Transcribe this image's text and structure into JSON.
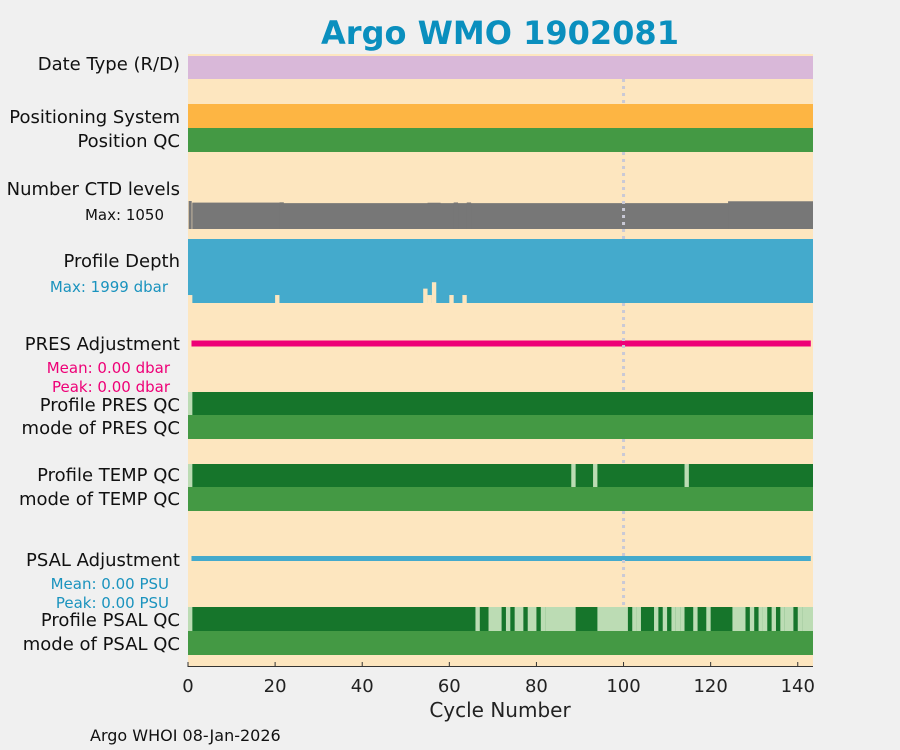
{
  "chart_data": {
    "type": "table",
    "title": "Argo WMO 1902081",
    "xlabel": "Cycle Number",
    "xlim": [
      0,
      143.5
    ],
    "xticks": [
      0,
      20,
      40,
      60,
      80,
      100,
      120,
      140
    ],
    "xtick_labels": [
      "0",
      "20",
      "40",
      "60",
      "80",
      "100",
      "120",
      "140"
    ],
    "reference_line_x": 100,
    "footer": "Argo WHOI 08-Jan-2026",
    "colors": {
      "background": "#fde6bf",
      "figure": "#f0f0f0",
      "title": "#0a8fbe",
      "date_type": "#d9b8d9",
      "positioning": "#fdb543",
      "qc_good": "#449944",
      "qc_dark": "#16752b",
      "qc_light": "#bcdcb4",
      "ctd": "#777777",
      "depth": "#44aacc",
      "pres_adjust": "#ee0077",
      "psal_adjust": "#44aacc",
      "depth_label": "#1a93be",
      "ref_line": "#c9c9d6"
    },
    "rows": [
      {
        "label": "Date Type (R/D)"
      },
      {
        "label": "Positioning System"
      },
      {
        "label": "Position QC"
      },
      {
        "label": "Number CTD levels",
        "sub": "Max: 1050"
      },
      {
        "label": "Profile Depth",
        "sub": "Max: 1999 dbar"
      },
      {
        "label": "PRES Adjustment",
        "sub": [
          "Mean: 0.00 dbar",
          "Peak: 0.00 dbar"
        ]
      },
      {
        "label": "Profile PRES QC"
      },
      {
        "label": "mode of PRES QC"
      },
      {
        "label": "Profile TEMP QC"
      },
      {
        "label": "mode of TEMP QC"
      },
      {
        "label": "PSAL Adjustment",
        "sub": [
          "Mean: 0.00 PSU",
          "Peak: 0.00 PSU"
        ]
      },
      {
        "label": "Profile PSAL QC"
      },
      {
        "label": "mode of PSAL QC"
      }
    ],
    "ctd_levels": {
      "default": 970,
      "max": 1050,
      "segments": [
        {
          "from": 1,
          "to": 21,
          "value": 990
        },
        {
          "from": 21,
          "to": 22,
          "value": 1000
        },
        {
          "from": 55,
          "to": 58,
          "value": 985
        },
        {
          "from": 61,
          "to": 62,
          "value": 995
        },
        {
          "from": 64,
          "to": 65,
          "value": 995
        },
        {
          "from": 124,
          "to": 143.5,
          "value": 1040
        }
      ],
      "spike": {
        "at": 0.5,
        "value": 1050
      }
    },
    "profile_depth": {
      "default": 1999,
      "max": 1999,
      "shallow": [
        {
          "cycle": 0.5,
          "value": 1750
        },
        {
          "cycle": 20.5,
          "value": 1750
        },
        {
          "cycle": 54.5,
          "value": 1550
        },
        {
          "cycle": 55.5,
          "value": 1750
        },
        {
          "cycle": 56.5,
          "value": 1350
        },
        {
          "cycle": 60.5,
          "value": 1750
        },
        {
          "cycle": 63.5,
          "value": 1750
        }
      ]
    },
    "pres_qc_light": [
      [
        0,
        1
      ]
    ],
    "temp_qc_light": [
      [
        0,
        1
      ],
      [
        88,
        89
      ],
      [
        93,
        94
      ],
      [
        114,
        115
      ]
    ],
    "psal_qc_light": [
      [
        0,
        1
      ],
      [
        66,
        67
      ],
      [
        69,
        72
      ],
      [
        73,
        74
      ],
      [
        75,
        77
      ],
      [
        78,
        80
      ],
      [
        81,
        82
      ],
      [
        82,
        89
      ],
      [
        94,
        101
      ],
      [
        102,
        103
      ],
      [
        103,
        104
      ],
      [
        107,
        108
      ],
      [
        109,
        110
      ],
      [
        111,
        112
      ],
      [
        112,
        113
      ],
      [
        113,
        114
      ],
      [
        116,
        117
      ],
      [
        119,
        120
      ],
      [
        125,
        128
      ],
      [
        129,
        130
      ],
      [
        131,
        132
      ],
      [
        132,
        133
      ],
      [
        134,
        135
      ],
      [
        136,
        137
      ],
      [
        137,
        139
      ],
      [
        140,
        141
      ],
      [
        141,
        143.5
      ]
    ]
  }
}
